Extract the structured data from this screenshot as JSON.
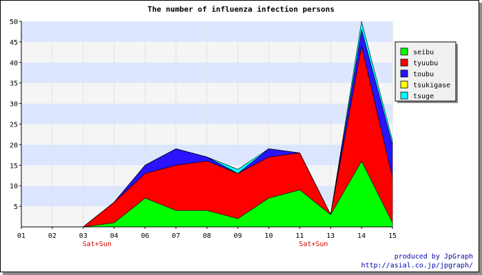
{
  "chart_data": {
    "type": "area",
    "stacked": true,
    "title": "The number of influenza infection persons",
    "categories": [
      "01",
      "02",
      "03",
      "04",
      "06",
      "07",
      "08",
      "09",
      "10",
      "11",
      "13",
      "14",
      "15"
    ],
    "category_notes": [
      "",
      "",
      "Sat+Sun",
      "",
      "",
      "",
      "",
      "",
      "",
      "Sat+Sun",
      "",
      "",
      ""
    ],
    "ylim": [
      0,
      50
    ],
    "yticks": [
      5,
      10,
      15,
      20,
      25,
      30,
      35,
      40,
      45,
      50
    ],
    "grid": "horizontal bands",
    "legend_position": "right",
    "series": [
      {
        "name": "seibu",
        "color": "#00ff00",
        "values": [
          0,
          0,
          0,
          1,
          7,
          4,
          4,
          2,
          7,
          9,
          3,
          16,
          1
        ]
      },
      {
        "name": "tyuubu",
        "color": "#ff0000",
        "values": [
          0,
          0,
          0,
          5,
          6,
          11,
          12,
          11,
          10,
          9,
          0,
          28,
          11
        ]
      },
      {
        "name": "toubu",
        "color": "#2a14ff",
        "values": [
          0,
          0,
          0,
          0,
          2,
          4,
          1,
          0,
          2,
          0,
          0,
          4,
          8
        ]
      },
      {
        "name": "tsukigase",
        "color": "#ffff00",
        "values": [
          0,
          0,
          0,
          0,
          0,
          0,
          0,
          0,
          0,
          0,
          0,
          0,
          0
        ]
      },
      {
        "name": "tsuge",
        "color": "#00ffff",
        "values": [
          0,
          0,
          0,
          0,
          0,
          0,
          0,
          1,
          0,
          0,
          0,
          2,
          1
        ]
      }
    ]
  },
  "credits": {
    "line1": "produced by JpGraph",
    "line2": "http://asial.co.jp/jpgraph/"
  }
}
